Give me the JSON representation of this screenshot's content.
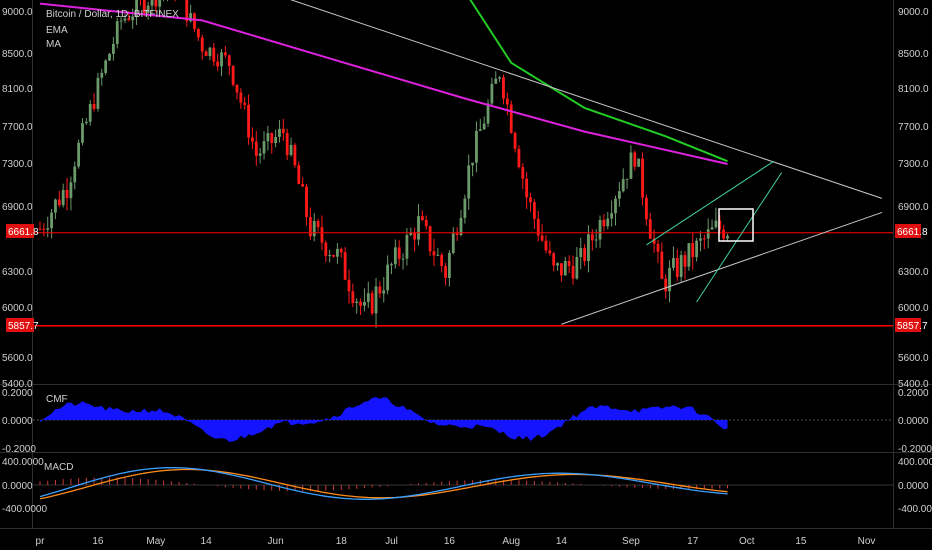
{
  "header": {
    "symbol": "Bitcoin / Dollar, 1D, BITFINEX",
    "indicator_1": "EMA",
    "indicator_2": "MA"
  },
  "colors": {
    "background": "#000000",
    "candle_up": "#6a9a6a",
    "candle_down": "#ff1a1a",
    "ema": "#22cc22",
    "ma": "#dd22dd",
    "trendline": "#c8c8c8",
    "channel": "#3fd0a0",
    "support": "#ff0000",
    "cmf_fill": "#1414ff",
    "macd_line": "#3aa0ff",
    "signal_line": "#ff8c1a",
    "histogram": "#c83a3a"
  },
  "price_axis": {
    "ticks": [
      "9000.0",
      "8500.0",
      "8100.0",
      "7700.0",
      "7300.0",
      "6900.0",
      "6300.0",
      "6000.0",
      "5600.0",
      "5400.0"
    ],
    "current_price_tag": "6661.8",
    "support_tag": "5857.7"
  },
  "time_axis": {
    "labels": [
      "pr",
      "16",
      "May",
      "14",
      "Jun",
      "18",
      "Jul",
      "16",
      "Aug",
      "14",
      "Sep",
      "17",
      "Oct",
      "15",
      "Nov"
    ]
  },
  "cmf": {
    "label": "CMF",
    "ticks": [
      "0.2000",
      "0.0000",
      "-0.2000"
    ]
  },
  "macd": {
    "label": "MACD",
    "ticks": [
      "400.0000",
      "0.0000",
      "-400.0000"
    ]
  },
  "chart_data": {
    "type": "candlestick",
    "title": "Bitcoin / Dollar, 1D, BITFINEX",
    "ylim": [
      5400,
      9200
    ],
    "x_range": [
      "2018-04-01",
      "2018-11-05"
    ],
    "price_series_close": [
      [
        "2018-04-01",
        6700
      ],
      [
        "2018-04-08",
        7100
      ],
      [
        "2018-04-15",
        8000
      ],
      [
        "2018-04-22",
        8900
      ],
      [
        "2018-04-29",
        9150
      ],
      [
        "2018-05-06",
        9300
      ],
      [
        "2018-05-13",
        8600
      ],
      [
        "2018-05-20",
        8400
      ],
      [
        "2018-05-27",
        7400
      ],
      [
        "2018-06-03",
        7650
      ],
      [
        "2018-06-10",
        6700
      ],
      [
        "2018-06-17",
        6450
      ],
      [
        "2018-06-24",
        5950
      ],
      [
        "2018-07-01",
        6350
      ],
      [
        "2018-07-08",
        6750
      ],
      [
        "2018-07-15",
        6300
      ],
      [
        "2018-07-22",
        7400
      ],
      [
        "2018-07-29",
        8300
      ],
      [
        "2018-08-05",
        7000
      ],
      [
        "2018-08-12",
        6300
      ],
      [
        "2018-08-19",
        6400
      ],
      [
        "2018-08-26",
        6900
      ],
      [
        "2018-09-02",
        7400
      ],
      [
        "2018-09-09",
        6200
      ],
      [
        "2018-09-16",
        6450
      ],
      [
        "2018-09-23",
        6700
      ]
    ],
    "ema_series": [
      [
        "2018-07-15",
        9600
      ],
      [
        "2018-08-01",
        8400
      ],
      [
        "2018-08-20",
        7900
      ],
      [
        "2018-09-10",
        7600
      ],
      [
        "2018-09-26",
        7330
      ]
    ],
    "ma_series": [
      [
        "2018-04-01",
        9100
      ],
      [
        "2018-05-13",
        8900
      ],
      [
        "2018-06-15",
        8450
      ],
      [
        "2018-07-20",
        8000
      ],
      [
        "2018-08-20",
        7650
      ],
      [
        "2018-09-26",
        7300
      ]
    ],
    "levels": {
      "current_price": 6661.8,
      "support": 5857.7
    },
    "cmf": {
      "ylim": [
        -0.2,
        0.2
      ]
    },
    "macd": {
      "ylim": [
        -400,
        400
      ]
    },
    "grid": false
  }
}
